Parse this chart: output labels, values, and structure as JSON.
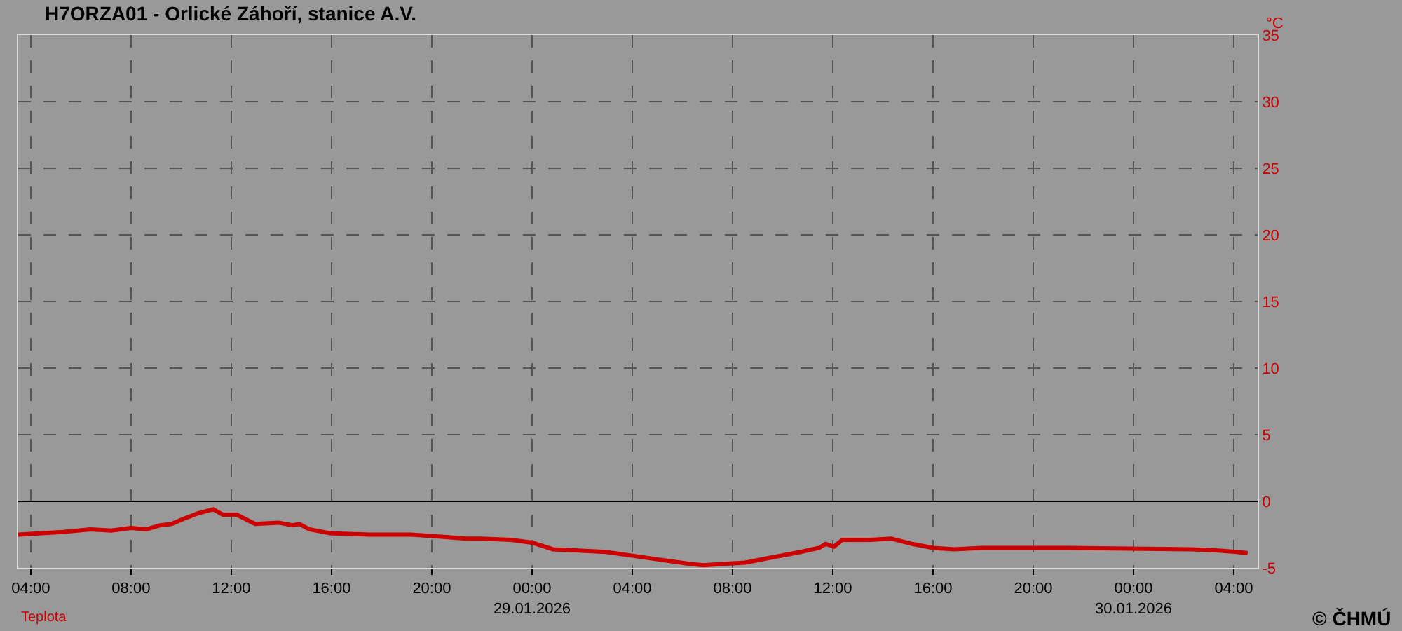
{
  "chart_data": {
    "type": "line",
    "title": "H7ORZA01 - Orlické Záhoří, stanice A.V.",
    "ylabel": "°C",
    "x": [
      "2026-01-28T03:30",
      "2026-01-28T05:17",
      "2026-01-28T06:23",
      "2026-01-28T07:13",
      "2026-01-28T08:00",
      "2026-01-28T08:37",
      "2026-01-28T09:10",
      "2026-01-28T09:37",
      "2026-01-28T10:07",
      "2026-01-28T10:40",
      "2026-01-28T11:17",
      "2026-01-28T11:40",
      "2026-01-28T12:13",
      "2026-01-28T12:57",
      "2026-01-28T13:53",
      "2026-01-28T14:27",
      "2026-01-28T14:43",
      "2026-01-28T15:07",
      "2026-01-28T15:57",
      "2026-01-28T17:30",
      "2026-01-28T19:10",
      "2026-01-28T20:00",
      "2026-01-28T21:23",
      "2026-01-28T21:57",
      "2026-01-28T23:10",
      "2026-01-29T00:00",
      "2026-01-29T00:50",
      "2026-01-29T01:50",
      "2026-01-29T02:57",
      "2026-01-29T04:03",
      "2026-01-29T05:10",
      "2026-01-29T06:17",
      "2026-01-29T06:50",
      "2026-01-29T07:40",
      "2026-01-29T08:30",
      "2026-01-29T09:37",
      "2026-01-29T10:43",
      "2026-01-29T11:27",
      "2026-01-29T11:43",
      "2026-01-29T12:03",
      "2026-01-29T12:23",
      "2026-01-29T13:30",
      "2026-01-29T14:20",
      "2026-01-29T15:10",
      "2026-01-29T16:00",
      "2026-01-29T16:50",
      "2026-01-29T17:57",
      "2026-01-29T20:10",
      "2026-01-29T21:17",
      "2026-01-30T02:17",
      "2026-01-30T03:23",
      "2026-01-30T04:07",
      "2026-01-30T04:33"
    ],
    "series": [
      {
        "name": "Teplota",
        "color": "#cc0000",
        "values": [
          -2.5,
          -2.3,
          -2.1,
          -2.2,
          -2.0,
          -2.1,
          -1.8,
          -1.7,
          -1.3,
          -0.9,
          -0.6,
          -1.0,
          -1.0,
          -1.7,
          -1.6,
          -1.8,
          -1.7,
          -2.1,
          -2.4,
          -2.5,
          -2.5,
          -2.6,
          -2.8,
          -2.8,
          -2.9,
          -3.1,
          -3.6,
          -3.7,
          -3.8,
          -4.1,
          -4.4,
          -4.7,
          -4.8,
          -4.7,
          -4.6,
          -4.2,
          -3.8,
          -3.5,
          -3.2,
          -3.4,
          -2.9,
          -2.9,
          -2.8,
          -3.2,
          -3.5,
          -3.6,
          -3.5,
          -3.5,
          -3.5,
          -3.6,
          -3.7,
          -3.8,
          -3.9
        ]
      }
    ],
    "xlim": [
      "2026-01-28T03:30",
      "2026-01-30T04:57"
    ],
    "xticks": [
      {
        "value": "2026-01-28T04:00",
        "label": "04:00"
      },
      {
        "value": "2026-01-28T08:00",
        "label": "08:00"
      },
      {
        "value": "2026-01-28T12:00",
        "label": "12:00"
      },
      {
        "value": "2026-01-28T16:00",
        "label": "16:00"
      },
      {
        "value": "2026-01-28T20:00",
        "label": "20:00"
      },
      {
        "value": "2026-01-29T00:00",
        "label": "00:00\n29.01.2026"
      },
      {
        "value": "2026-01-29T04:00",
        "label": "04:00"
      },
      {
        "value": "2026-01-29T08:00",
        "label": "08:00"
      },
      {
        "value": "2026-01-29T12:00",
        "label": "12:00"
      },
      {
        "value": "2026-01-29T16:00",
        "label": "16:00"
      },
      {
        "value": "2026-01-29T20:00",
        "label": "20:00"
      },
      {
        "value": "2026-01-30T00:00",
        "label": "00:00\n30.01.2026"
      },
      {
        "value": "2026-01-30T04:00",
        "label": "04:00"
      }
    ],
    "ylim": [
      -5,
      35
    ],
    "yticks": [
      -5,
      0,
      5,
      10,
      15,
      20,
      25,
      30,
      35
    ],
    "ref_lines": [
      {
        "axis": "y",
        "value": 0,
        "color": "#000000"
      }
    ],
    "grid": true,
    "line_style": "solid",
    "marker": "none",
    "annotations": [
      "© ČHMÚ"
    ]
  }
}
